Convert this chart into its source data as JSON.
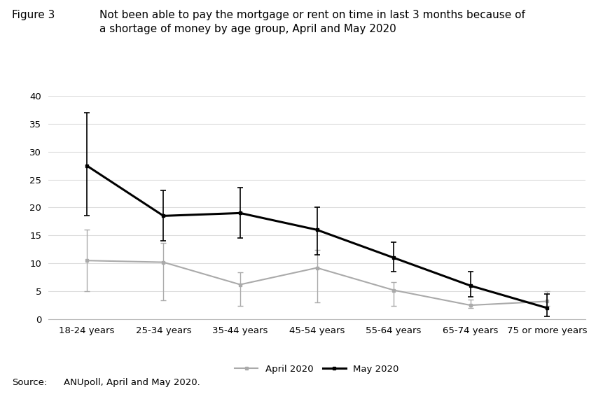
{
  "categories": [
    "18-24 years",
    "25-34 years",
    "35-44 years",
    "45-54 years",
    "55-64 years",
    "65-74 years",
    "75 or more years"
  ],
  "april_values": [
    10.5,
    10.2,
    6.2,
    9.2,
    5.2,
    2.5,
    3.2
  ],
  "may_values": [
    27.5,
    18.5,
    19.0,
    16.0,
    11.0,
    6.0,
    2.0
  ],
  "april_err_low": [
    5.5,
    6.8,
    3.8,
    6.2,
    2.8,
    0.5,
    0.8
  ],
  "april_err_high": [
    5.5,
    3.5,
    2.2,
    3.2,
    1.4,
    1.0,
    1.8
  ],
  "may_err_low": [
    9.0,
    4.5,
    4.5,
    4.5,
    2.5,
    2.0,
    1.5
  ],
  "may_err_high": [
    9.5,
    4.5,
    4.5,
    4.0,
    2.8,
    2.5,
    2.5
  ],
  "april_color": "#aaaaaa",
  "may_color": "#000000",
  "title_label": "Figure 3",
  "title_main_line1": "Not been able to pay the mortgage or rent on time in last 3 months because of",
  "title_main_line2": "a shortage of money by age group, April and May 2020",
  "source_label": "Source:",
  "source_text": "ANUpoll, April and May 2020.",
  "legend_april": "April 2020",
  "legend_may": "May 2020",
  "ylim": [
    0,
    40
  ],
  "yticks": [
    0,
    5,
    10,
    15,
    20,
    25,
    30,
    35,
    40
  ],
  "background_color": "#ffffff",
  "grid_color": "#dddddd"
}
